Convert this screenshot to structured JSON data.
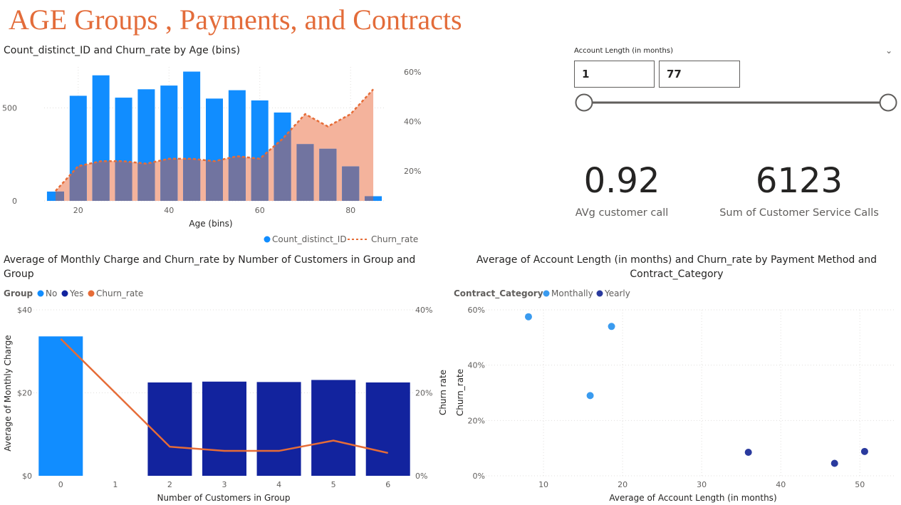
{
  "page": {
    "title": "AGE Groups , Payments, and Contracts"
  },
  "slicer": {
    "label": "Account Length (in months)",
    "min_value": "1",
    "max_value": "77",
    "min": 1,
    "max": 77
  },
  "kpis": [
    {
      "value": "0.92",
      "label": "AVg customer call"
    },
    {
      "value": "6123",
      "label": "Sum of Customer Service Calls"
    }
  ],
  "colors": {
    "title": "#E36C3A",
    "no": "#118DFF",
    "yes": "#12239E",
    "churn": "#E66C37",
    "area": "#F4B39C",
    "overlap": "#7174A0"
  },
  "chart_data": [
    {
      "type": "bar",
      "title": "Count_distinct_ID and Churn_rate by Age (bins)",
      "xlabel": "Age (bins)",
      "x_ticks": [
        "20",
        "40",
        "60",
        "80"
      ],
      "y_ticks_left": [
        "0",
        "500"
      ],
      "y_ticks_right": [
        "20%",
        "40%",
        "60%"
      ],
      "ylim_left": [
        0,
        720
      ],
      "ylim_right": [
        0.08,
        0.62
      ],
      "x": [
        15,
        20,
        25,
        30,
        35,
        40,
        45,
        50,
        55,
        60,
        65,
        70,
        75,
        80,
        85
      ],
      "series": [
        {
          "name": "Count_distinct_ID",
          "type": "bar",
          "values": [
            50,
            565,
            675,
            555,
            600,
            620,
            695,
            550,
            595,
            540,
            475,
            305,
            280,
            185,
            25
          ]
        },
        {
          "name": "Churn_rate",
          "type": "area-line",
          "values": [
            0.12,
            0.22,
            0.24,
            0.24,
            0.23,
            0.25,
            0.25,
            0.24,
            0.26,
            0.25,
            0.33,
            0.43,
            0.38,
            0.43,
            0.53
          ]
        }
      ],
      "legend_position": "bottom",
      "legend": [
        "Count_distinct_ID",
        "Churn_rate"
      ]
    },
    {
      "type": "bar",
      "title": "Average of Monthly Charge and Churn_rate by Number of Customers in Group and Group",
      "title_lines": [
        "Average of Monthly Charge and Churn_rate by Number of Customers in Group and",
        "Group"
      ],
      "xlabel": "Number of Customers in Group",
      "ylabel": "Average of Monthly Charge",
      "legend_title": "Group",
      "legend": [
        "No",
        "Yes",
        "Churn_rate"
      ],
      "legend_position": "top-left",
      "categories": [
        "0",
        "1",
        "2",
        "3",
        "4",
        "5",
        "6"
      ],
      "y_ticks_left": [
        "$0",
        "$20",
        "$40"
      ],
      "y_ticks_right": [
        "0%",
        "20%",
        "40%"
      ],
      "ylim_left": [
        0,
        40
      ],
      "ylim_right": [
        0,
        0.4
      ],
      "series": [
        {
          "name": "No",
          "type": "bar",
          "values": [
            33.6,
            null,
            null,
            null,
            null,
            null,
            null
          ]
        },
        {
          "name": "Yes",
          "type": "bar",
          "values": [
            null,
            null,
            22.5,
            22.7,
            22.6,
            23.1,
            22.5
          ]
        },
        {
          "name": "Churn_rate",
          "type": "line",
          "values": [
            0.33,
            null,
            0.07,
            0.06,
            0.06,
            0.085,
            0.055
          ]
        }
      ]
    },
    {
      "type": "scatter",
      "title": "Average of Account Length (in months) and Churn_rate by Payment Method and Contract_Category",
      "title_lines": [
        "Average of Account Length (in months) and Churn_rate by Payment Method and",
        "Contract_Category"
      ],
      "xlabel": "Average of Account Length (in months)",
      "ylabel": "Churn_rate",
      "ylabel_outer": "Churn rate",
      "legend_title": "Contract_Category",
      "legend": [
        "Monthally",
        "Yearly"
      ],
      "legend_position": "top-left",
      "x_ticks": [
        "10",
        "20",
        "30",
        "40",
        "50"
      ],
      "y_ticks": [
        "0%",
        "20%",
        "40%",
        "60%"
      ],
      "xlim": [
        2.7,
        54.3
      ],
      "ylim": [
        0,
        0.6
      ],
      "series": [
        {
          "name": "Monthally",
          "points": [
            [
              8.1,
              0.575
            ],
            [
              15.9,
              0.29
            ],
            [
              18.6,
              0.54
            ]
          ]
        },
        {
          "name": "Yearly",
          "points": [
            [
              35.9,
              0.085
            ],
            [
              46.8,
              0.045
            ],
            [
              50.6,
              0.088
            ]
          ]
        }
      ]
    }
  ]
}
